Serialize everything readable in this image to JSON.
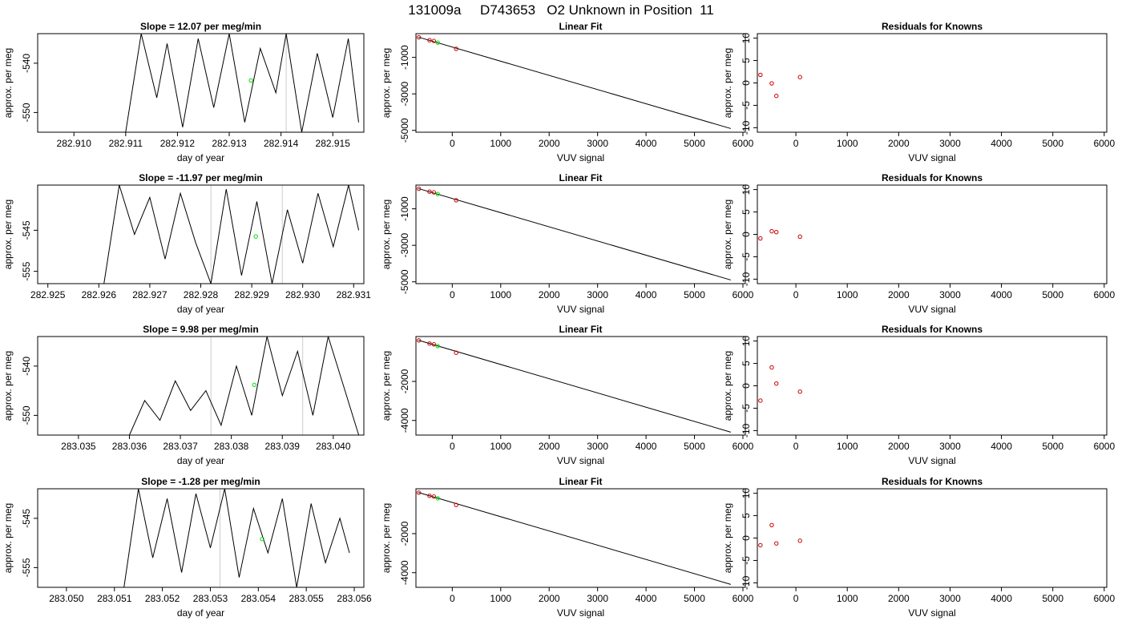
{
  "figure_title": "131009a     D743653   O2 Unknown in Position  11",
  "chart_data": [
    {
      "row": 0,
      "col": 0,
      "type": "line",
      "title": "Slope =  12.07  per meg/min",
      "xlabel": "day of year",
      "ylabel": "approx. per meg",
      "xlim": [
        282.9093,
        282.9156
      ],
      "ylim": [
        -554,
        -534
      ],
      "xticks": [
        "282.910",
        "282.911",
        "282.912",
        "282.913",
        "282.914",
        "282.915"
      ],
      "yticks": [
        "-540",
        "-550"
      ],
      "vlines": [
        282.9141
      ],
      "series": [
        {
          "x": [
            282.911,
            282.9113,
            282.9116,
            282.9118,
            282.9121,
            282.9124,
            282.9127,
            282.913,
            282.9133,
            282.9136,
            282.9139,
            282.9141,
            282.9144,
            282.9147,
            282.915,
            282.9153,
            282.9155
          ],
          "y": [
            -554,
            -534,
            -547,
            -536,
            -553,
            -535,
            -549,
            -534,
            -552,
            -537,
            -546,
            -534,
            -554,
            -538,
            -551,
            -535,
            -552
          ]
        }
      ],
      "highlight": [
        {
          "x": 282.91342,
          "y": -543.5
        }
      ]
    },
    {
      "row": 0,
      "col": 1,
      "type": "scatter-fit",
      "title": "Linear Fit",
      "xlabel": "VUV signal",
      "ylabel": "approx. per meg",
      "xlim": [
        -750,
        6050
      ],
      "ylim": [
        -5100,
        300
      ],
      "xticks": [
        "0",
        "1000",
        "2000",
        "3000",
        "4000",
        "5000",
        "6000"
      ],
      "yticks": [
        "-1000",
        "-3000",
        "-5000"
      ],
      "knowns": [
        {
          "x": -690,
          "y": 100
        },
        {
          "x": -470,
          "y": -60
        },
        {
          "x": -380,
          "y": -100
        },
        {
          "x": 80,
          "y": -530
        }
      ],
      "unknown": {
        "x": -300,
        "y": -190
      },
      "fit_line": [
        {
          "x": -700,
          "y": 110
        },
        {
          "x": 5750,
          "y": -4900
        }
      ]
    },
    {
      "row": 0,
      "col": 2,
      "type": "scatter",
      "title": "Residuals for Knowns",
      "xlabel": "VUV signal",
      "ylabel": "approx. per meg",
      "xlim": [
        -750,
        6050
      ],
      "ylim": [
        -11,
        11
      ],
      "xticks": [
        "0",
        "1000",
        "2000",
        "3000",
        "4000",
        "5000",
        "6000"
      ],
      "yticks": [
        "10",
        "5",
        "0",
        "-5",
        "-10"
      ],
      "points": [
        {
          "x": -690,
          "y": 1.8
        },
        {
          "x": -470,
          "y": -0.1
        },
        {
          "x": -380,
          "y": -2.9
        },
        {
          "x": 80,
          "y": 1.3
        }
      ]
    },
    {
      "row": 1,
      "col": 0,
      "type": "line",
      "title": "Slope =  -11.97  per meg/min",
      "xlabel": "day of year",
      "ylabel": "approx. per meg",
      "xlim": [
        282.9248,
        282.9312
      ],
      "ylim": [
        -558,
        -534
      ],
      "xticks": [
        "282.925",
        "282.926",
        "282.927",
        "282.928",
        "282.929",
        "282.930",
        "282.931"
      ],
      "yticks": [
        "-545",
        "-555"
      ],
      "vlines": [
        282.9282,
        282.9296
      ],
      "series": [
        {
          "x": [
            282.9261,
            282.9264,
            282.9267,
            282.927,
            282.9273,
            282.9276,
            282.9279,
            282.9282,
            282.9285,
            282.9288,
            282.9291,
            282.9294,
            282.9297,
            282.93,
            282.9303,
            282.9306,
            282.9309,
            282.9311
          ],
          "y": [
            -558,
            -534,
            -546,
            -537,
            -552,
            -536,
            -548,
            -558,
            -535,
            -556,
            -538,
            -558,
            -540,
            -553,
            -536,
            -549,
            -534,
            -545
          ]
        }
      ],
      "highlight": [
        {
          "x": 282.92908,
          "y": -546.5
        }
      ]
    },
    {
      "row": 1,
      "col": 1,
      "type": "scatter-fit",
      "title": "Linear Fit",
      "xlabel": "VUV signal",
      "ylabel": "approx. per meg",
      "xlim": [
        -750,
        6050
      ],
      "ylim": [
        -5100,
        300
      ],
      "xticks": [
        "0",
        "1000",
        "2000",
        "3000",
        "4000",
        "5000",
        "6000"
      ],
      "yticks": [
        "-1000",
        "-3000",
        "-5000"
      ],
      "knowns": [
        {
          "x": -690,
          "y": 100
        },
        {
          "x": -470,
          "y": -60
        },
        {
          "x": -380,
          "y": -100
        },
        {
          "x": 80,
          "y": -530
        }
      ],
      "unknown": {
        "x": -300,
        "y": -190
      },
      "fit_line": [
        {
          "x": -700,
          "y": 110
        },
        {
          "x": 5750,
          "y": -4900
        }
      ]
    },
    {
      "row": 1,
      "col": 2,
      "type": "scatter",
      "title": "Residuals for Knowns",
      "xlabel": "VUV signal",
      "ylabel": "approx. per meg",
      "xlim": [
        -750,
        6050
      ],
      "ylim": [
        -11,
        11
      ],
      "xticks": [
        "0",
        "1000",
        "2000",
        "3000",
        "4000",
        "5000",
        "6000"
      ],
      "yticks": [
        "10",
        "5",
        "0",
        "-5",
        "-10"
      ],
      "points": [
        {
          "x": -690,
          "y": -0.9
        },
        {
          "x": -470,
          "y": 0.7
        },
        {
          "x": -380,
          "y": 0.5
        },
        {
          "x": 80,
          "y": -0.5
        }
      ]
    },
    {
      "row": 2,
      "col": 0,
      "type": "line",
      "title": "Slope =  9.98  per meg/min",
      "xlabel": "day of year",
      "ylabel": "approx. per meg",
      "xlim": [
        283.0342,
        283.0406
      ],
      "ylim": [
        -554,
        -534
      ],
      "xticks": [
        "283.035",
        "283.036",
        "283.037",
        "283.038",
        "283.039",
        "283.040"
      ],
      "yticks": [
        "-540",
        "-550"
      ],
      "vlines": [
        283.0376,
        283.0394
      ],
      "series": [
        {
          "x": [
            283.036,
            283.0363,
            283.0366,
            283.0369,
            283.0372,
            283.0375,
            283.0378,
            283.0381,
            283.0384,
            283.0387,
            283.039,
            283.0393,
            283.0396,
            283.0399,
            283.0402,
            283.0405
          ],
          "y": [
            -554,
            -547,
            -551,
            -543,
            -549,
            -545,
            -552,
            -540,
            -550,
            -534,
            -546,
            -537,
            -550,
            -534,
            -544,
            -554
          ]
        }
      ],
      "highlight": [
        {
          "x": 283.03845,
          "y": -543.8
        }
      ]
    },
    {
      "row": 2,
      "col": 1,
      "type": "scatter-fit",
      "title": "Linear Fit",
      "xlabel": "VUV signal",
      "ylabel": "approx. per meg",
      "xlim": [
        -750,
        6050
      ],
      "ylim": [
        -4750,
        300
      ],
      "xticks": [
        "0",
        "1000",
        "2000",
        "3000",
        "4000",
        "5000",
        "6000"
      ],
      "yticks": [
        "-2000",
        "-4000"
      ],
      "knowns": [
        {
          "x": -690,
          "y": 100
        },
        {
          "x": -470,
          "y": -60
        },
        {
          "x": -380,
          "y": -100
        },
        {
          "x": 80,
          "y": -530
        }
      ],
      "unknown": {
        "x": -300,
        "y": -190
      },
      "fit_line": [
        {
          "x": -700,
          "y": 110
        },
        {
          "x": 5750,
          "y": -4600
        }
      ]
    },
    {
      "row": 2,
      "col": 2,
      "type": "scatter",
      "title": "Residuals for Knowns",
      "xlabel": "VUV signal",
      "ylabel": "approx. per meg",
      "xlim": [
        -750,
        6050
      ],
      "ylim": [
        -11,
        11
      ],
      "xticks": [
        "0",
        "1000",
        "2000",
        "3000",
        "4000",
        "5000",
        "6000"
      ],
      "yticks": [
        "10",
        "5",
        "0",
        "-5",
        "-10"
      ],
      "points": [
        {
          "x": -690,
          "y": -3.3
        },
        {
          "x": -470,
          "y": 4.1
        },
        {
          "x": -380,
          "y": 0.5
        },
        {
          "x": 80,
          "y": -1.3
        }
      ]
    },
    {
      "row": 3,
      "col": 0,
      "type": "line",
      "title": "Slope =  -1.28  per meg/min",
      "xlabel": "day of year",
      "ylabel": "approx. per meg",
      "xlim": [
        283.0494,
        283.0562
      ],
      "ylim": [
        -559,
        -539
      ],
      "xticks": [
        "283.050",
        "283.051",
        "283.052",
        "283.053",
        "283.054",
        "283.055",
        "283.056"
      ],
      "yticks": [
        "-545",
        "-555"
      ],
      "vlines": [
        283.0532
      ],
      "series": [
        {
          "x": [
            283.0512,
            283.0515,
            283.0518,
            283.0521,
            283.0524,
            283.0527,
            283.053,
            283.0533,
            283.0536,
            283.0539,
            283.0542,
            283.0545,
            283.0548,
            283.0551,
            283.0554,
            283.0557,
            283.0559
          ],
          "y": [
            -559,
            -539,
            -553,
            -541,
            -556,
            -540,
            -551,
            -539,
            -557,
            -543,
            -552,
            -541,
            -559,
            -542,
            -554,
            -545,
            -552
          ]
        }
      ],
      "highlight": [
        {
          "x": 283.05408,
          "y": -549.2
        }
      ]
    },
    {
      "row": 3,
      "col": 1,
      "type": "scatter-fit",
      "title": "Linear Fit",
      "xlabel": "VUV signal",
      "ylabel": "approx. per meg",
      "xlim": [
        -750,
        6050
      ],
      "ylim": [
        -4750,
        300
      ],
      "xticks": [
        "0",
        "1000",
        "2000",
        "3000",
        "4000",
        "5000",
        "6000"
      ],
      "yticks": [
        "-2000",
        "-4000"
      ],
      "knowns": [
        {
          "x": -690,
          "y": 100
        },
        {
          "x": -470,
          "y": -60
        },
        {
          "x": -380,
          "y": -100
        },
        {
          "x": 80,
          "y": -530
        }
      ],
      "unknown": {
        "x": -300,
        "y": -190
      },
      "fit_line": [
        {
          "x": -700,
          "y": 110
        },
        {
          "x": 5750,
          "y": -4600
        }
      ]
    },
    {
      "row": 3,
      "col": 2,
      "type": "scatter",
      "title": "Residuals for Knowns",
      "xlabel": "VUV signal",
      "ylabel": "approx. per meg",
      "xlim": [
        -750,
        6050
      ],
      "ylim": [
        -11,
        11
      ],
      "xticks": [
        "0",
        "1000",
        "2000",
        "3000",
        "4000",
        "5000",
        "6000"
      ],
      "yticks": [
        "10",
        "5",
        "0",
        "-5",
        "-10"
      ],
      "points": [
        {
          "x": -690,
          "y": -1.6
        },
        {
          "x": -470,
          "y": 2.9
        },
        {
          "x": -380,
          "y": -1.2
        },
        {
          "x": 80,
          "y": -0.6
        }
      ]
    }
  ],
  "colors": {
    "line": "#000000",
    "known_point": "#cc0000",
    "unknown_point": "#00dd00",
    "vline": "#cccccc",
    "box": "#000000"
  }
}
